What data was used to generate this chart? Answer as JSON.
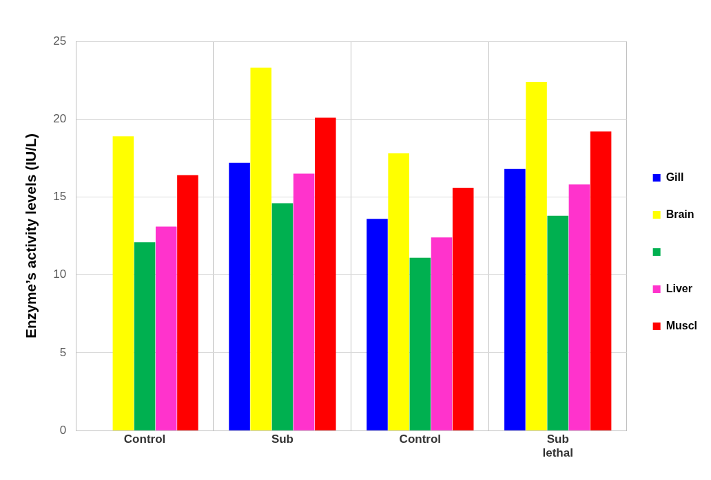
{
  "chart_data": {
    "type": "bar",
    "ylabel": "Enzyme’s activity levels (IU/L)",
    "categories": [
      "Control",
      "Sub",
      "Control",
      "Sub lethal"
    ],
    "series": [
      {
        "name": "Gill",
        "color": "#0000ff",
        "values": [
          null,
          17.2,
          13.6,
          16.8
        ]
      },
      {
        "name": "Brain",
        "color": "#ffff00",
        "values": [
          18.9,
          23.3,
          17.8,
          22.4
        ]
      },
      {
        "color": "#00b050",
        "values": [
          12.1,
          14.6,
          11.1,
          13.8
        ]
      },
      {
        "name": "Liver",
        "color": "#ff33cc",
        "values": [
          13.1,
          16.5,
          12.4,
          15.8
        ]
      },
      {
        "name": "Muscl",
        "color": "#ff0000",
        "values": [
          16.4,
          20.1,
          15.6,
          19.2
        ]
      }
    ],
    "ylim": [
      0,
      25
    ],
    "yticks": [
      0,
      5,
      10,
      15,
      20,
      25
    ],
    "grid": true,
    "legend": "right"
  }
}
